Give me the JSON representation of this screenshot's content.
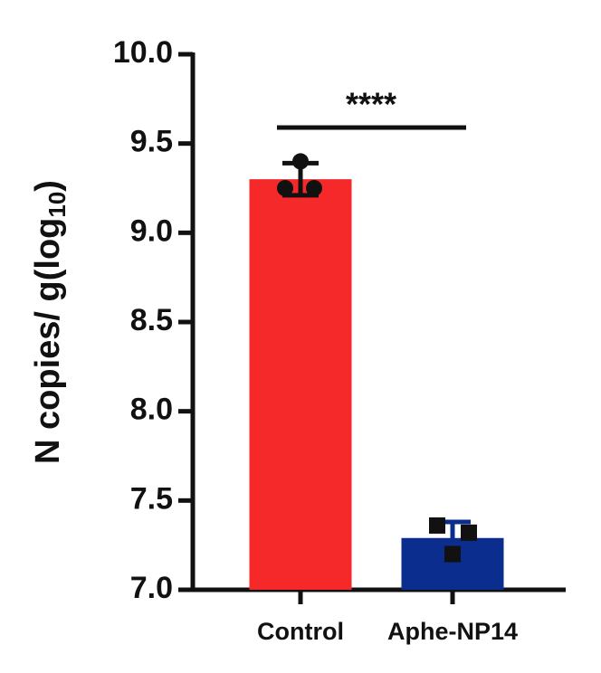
{
  "chart_data": {
    "type": "bar",
    "ylabel": [
      "N copies/ g(log",
      "10",
      ")"
    ],
    "annotation": "****",
    "categories": [
      "Control",
      "Aphe-NP14"
    ],
    "values": [
      9.3,
      7.29
    ],
    "errors": [
      0.09,
      0.09
    ],
    "points": [
      [
        9.4,
        9.25,
        9.25
      ],
      [
        7.36,
        7.32,
        7.2
      ]
    ],
    "colors": [
      "#f5282a",
      "#0b2d8e"
    ],
    "markers": [
      "circle",
      "square"
    ],
    "ylim": [
      7,
      10
    ],
    "yticks": [
      {
        "value": 7,
        "label": "7.0"
      },
      7.5,
      {
        "value": 8,
        "label": "8.0"
      },
      8.5,
      {
        "value": 9,
        "label": "9.0"
      },
      9.5,
      {
        "value": 10,
        "label": "10.0"
      }
    ]
  }
}
